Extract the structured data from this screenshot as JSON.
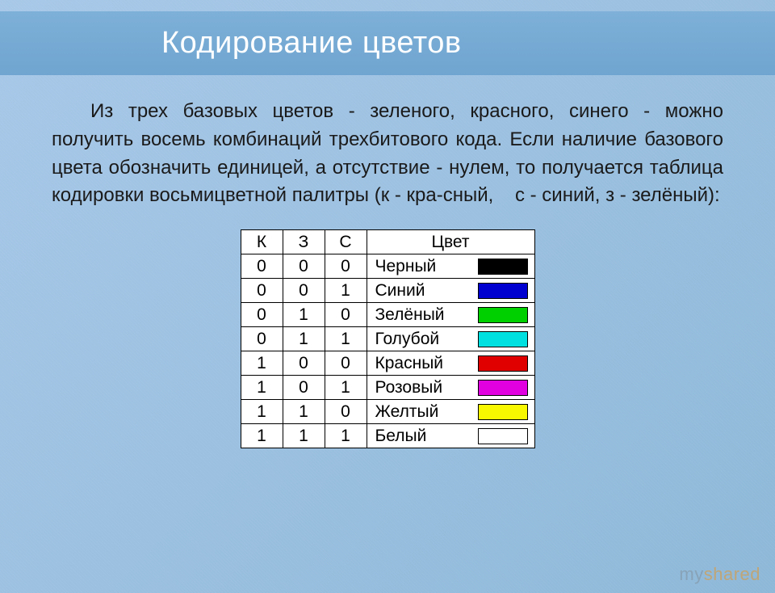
{
  "title": "Кодирование цветов",
  "paragraph": "Из трех базовых цветов - зеленого, красного, синего - можно получить восемь комбинаций трехбитового кода. Если наличие базового цвета обозначить единицей, а отсутствие - нулем, то получается таблица кодировки восьмицветной палитры (к - кра-сный,    с - синий, з - зелёный):",
  "table": {
    "headers": {
      "k": "К",
      "z": "З",
      "s": "С",
      "color": "Цвет"
    },
    "rows": [
      {
        "k": "0",
        "z": "0",
        "s": "0",
        "name": "Черный",
        "swatch": "#000000",
        "swatch_border": "#000000"
      },
      {
        "k": "0",
        "z": "0",
        "s": "1",
        "name": "Синий",
        "swatch": "#0000d0",
        "swatch_border": "#000000"
      },
      {
        "k": "0",
        "z": "1",
        "s": "0",
        "name": "Зелёный",
        "swatch": "#00d000",
        "swatch_border": "#000000"
      },
      {
        "k": "0",
        "z": "1",
        "s": "1",
        "name": "Голубой",
        "swatch": "#00e0e0",
        "swatch_border": "#000000"
      },
      {
        "k": "1",
        "z": "0",
        "s": "0",
        "name": "Красный",
        "swatch": "#e00000",
        "swatch_border": "#000000"
      },
      {
        "k": "1",
        "z": "0",
        "s": "1",
        "name": "Розовый",
        "swatch": "#e000e0",
        "swatch_border": "#000000"
      },
      {
        "k": "1",
        "z": "1",
        "s": "0",
        "name": "Желтый",
        "swatch": "#f8f800",
        "swatch_border": "#000000"
      },
      {
        "k": "1",
        "z": "1",
        "s": "1",
        "name": "Белый",
        "swatch": "#ffffff",
        "swatch_border": "#000000"
      }
    ]
  },
  "watermark": {
    "part1": "my",
    "part2": "shared"
  }
}
